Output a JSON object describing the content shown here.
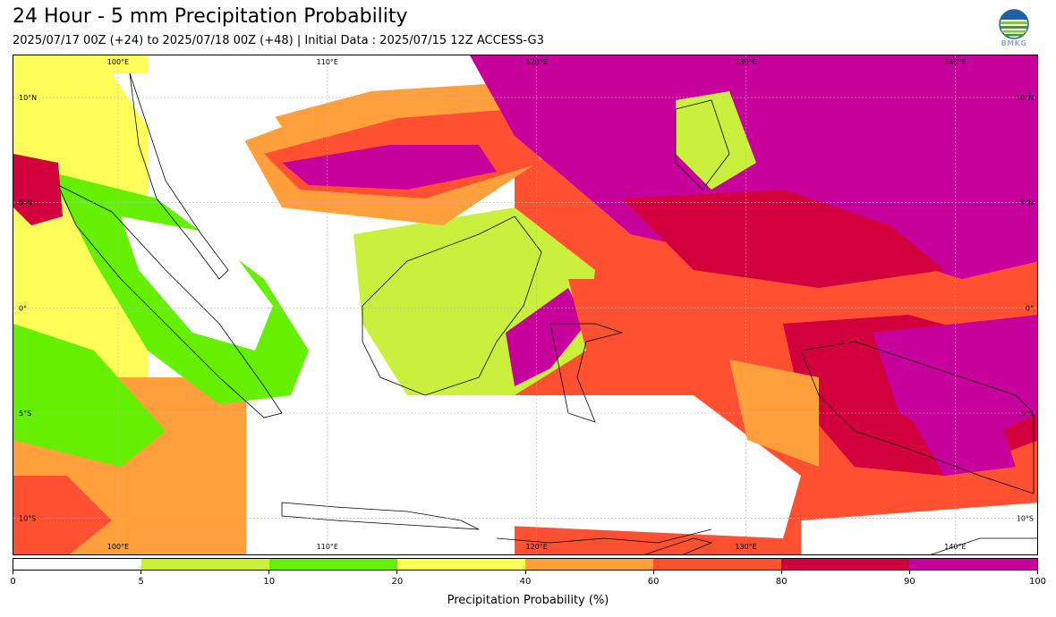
{
  "header": {
    "title": "24 Hour - 5 mm Precipitation Probability",
    "subtitle": "2025/07/17 00Z (+24) to 2025/07/18 00Z (+48) | Initial Data : 2025/07/15 12Z ACCESS-G3"
  },
  "logo": {
    "text": "BMKG"
  },
  "map": {
    "lon_range": [
      95,
      144
    ],
    "lat_range": [
      -11.8,
      12
    ],
    "lon_labels": [
      "100°E",
      "110°E",
      "120°E",
      "130°E",
      "140°E"
    ],
    "lat_labels": [
      "10°N",
      "5°N",
      "0°",
      "5°S",
      "10°S"
    ],
    "colors": {
      "p5": "#c8f03c",
      "p10": "#64f000",
      "p20": "#ffff5a",
      "p40": "#ffa03c",
      "p60": "#ff5032",
      "p80": "#d2003c",
      "p90": "#c8009b"
    }
  },
  "colorbar": {
    "title": "Precipitation Probability (%)",
    "ticks": [
      "0",
      "5",
      "10",
      "20",
      "40",
      "60",
      "80",
      "90",
      "100"
    ],
    "segment_colors": [
      "#ffffff",
      "#c8f03c",
      "#64f000",
      "#ffff5a",
      "#ffa03c",
      "#ff5032",
      "#d2003c",
      "#c8009b"
    ]
  }
}
